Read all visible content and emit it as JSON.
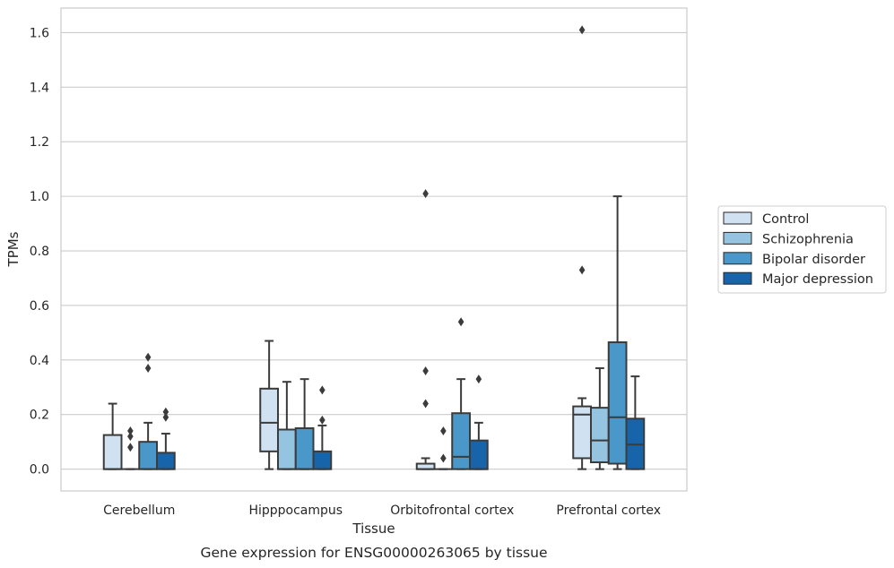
{
  "chart_data": {
    "type": "boxplot",
    "xlabel": "Tissue",
    "ylabel": "TPMs",
    "caption": "Gene expression for ENSG00000263065 by tissue",
    "ylim": [
      -0.08,
      1.69
    ],
    "yticks": [
      "0.0",
      "0.2",
      "0.4",
      "0.6",
      "0.8",
      "1.0",
      "1.2",
      "1.4",
      "1.6"
    ],
    "grid": true,
    "legend_position": "right",
    "categories": [
      "Cerebellum",
      "Hipppocampus",
      "Orbitofrontal cortex",
      "Prefrontal cortex"
    ],
    "series": [
      {
        "name": "Control",
        "color": "#d0e1f2",
        "boxes": [
          {
            "low": 0.0,
            "q1": 0.0,
            "median": 0.0,
            "q3": 0.125,
            "high": 0.24,
            "outliers": []
          },
          {
            "low": 0.0,
            "q1": 0.065,
            "median": 0.17,
            "q3": 0.295,
            "high": 0.47,
            "outliers": []
          },
          {
            "low": 0.0,
            "q1": 0.0,
            "median": 0.0,
            "q3": 0.02,
            "high": 0.04,
            "outliers": [
              0.24,
              0.36,
              1.01
            ]
          },
          {
            "low": 0.0,
            "q1": 0.04,
            "median": 0.2,
            "q3": 0.23,
            "high": 0.26,
            "outliers": [
              0.73,
              1.61
            ]
          }
        ]
      },
      {
        "name": "Schizophrenia",
        "color": "#94c4df",
        "boxes": [
          {
            "low": 0.0,
            "q1": 0.0,
            "median": 0.0,
            "q3": 0.0,
            "high": 0.0,
            "outliers": [
              0.08,
              0.12,
              0.14
            ]
          },
          {
            "low": 0.0,
            "q1": 0.0,
            "median": 0.0,
            "q3": 0.145,
            "high": 0.32,
            "outliers": []
          },
          {
            "low": 0.0,
            "q1": 0.0,
            "median": 0.0,
            "q3": 0.0,
            "high": 0.0,
            "outliers": [
              0.04,
              0.14
            ]
          },
          {
            "low": 0.0,
            "q1": 0.025,
            "median": 0.105,
            "q3": 0.225,
            "high": 0.37,
            "outliers": []
          }
        ]
      },
      {
        "name": "Bipolar disorder",
        "color": "#4a98c9",
        "boxes": [
          {
            "low": 0.0,
            "q1": 0.0,
            "median": 0.0,
            "q3": 0.1,
            "high": 0.17,
            "outliers": [
              0.37,
              0.41
            ]
          },
          {
            "low": 0.0,
            "q1": 0.0,
            "median": 0.0,
            "q3": 0.15,
            "high": 0.33,
            "outliers": []
          },
          {
            "low": 0.0,
            "q1": 0.0,
            "median": 0.045,
            "q3": 0.205,
            "high": 0.33,
            "outliers": [
              0.54
            ]
          },
          {
            "low": 0.0,
            "q1": 0.02,
            "median": 0.19,
            "q3": 0.465,
            "high": 1.0,
            "outliers": []
          }
        ]
      },
      {
        "name": "Major depression",
        "color": "#1764ab",
        "boxes": [
          {
            "low": 0.0,
            "q1": 0.0,
            "median": 0.0,
            "q3": 0.06,
            "high": 0.13,
            "outliers": [
              0.19,
              0.21
            ]
          },
          {
            "low": 0.0,
            "q1": 0.0,
            "median": 0.0,
            "q3": 0.065,
            "high": 0.16,
            "outliers": [
              0.18,
              0.29
            ]
          },
          {
            "low": 0.0,
            "q1": 0.0,
            "median": 0.0,
            "q3": 0.105,
            "high": 0.17,
            "outliers": [
              0.33
            ]
          },
          {
            "low": 0.0,
            "q1": 0.0,
            "median": 0.09,
            "q3": 0.185,
            "high": 0.34,
            "outliers": []
          }
        ]
      }
    ]
  }
}
